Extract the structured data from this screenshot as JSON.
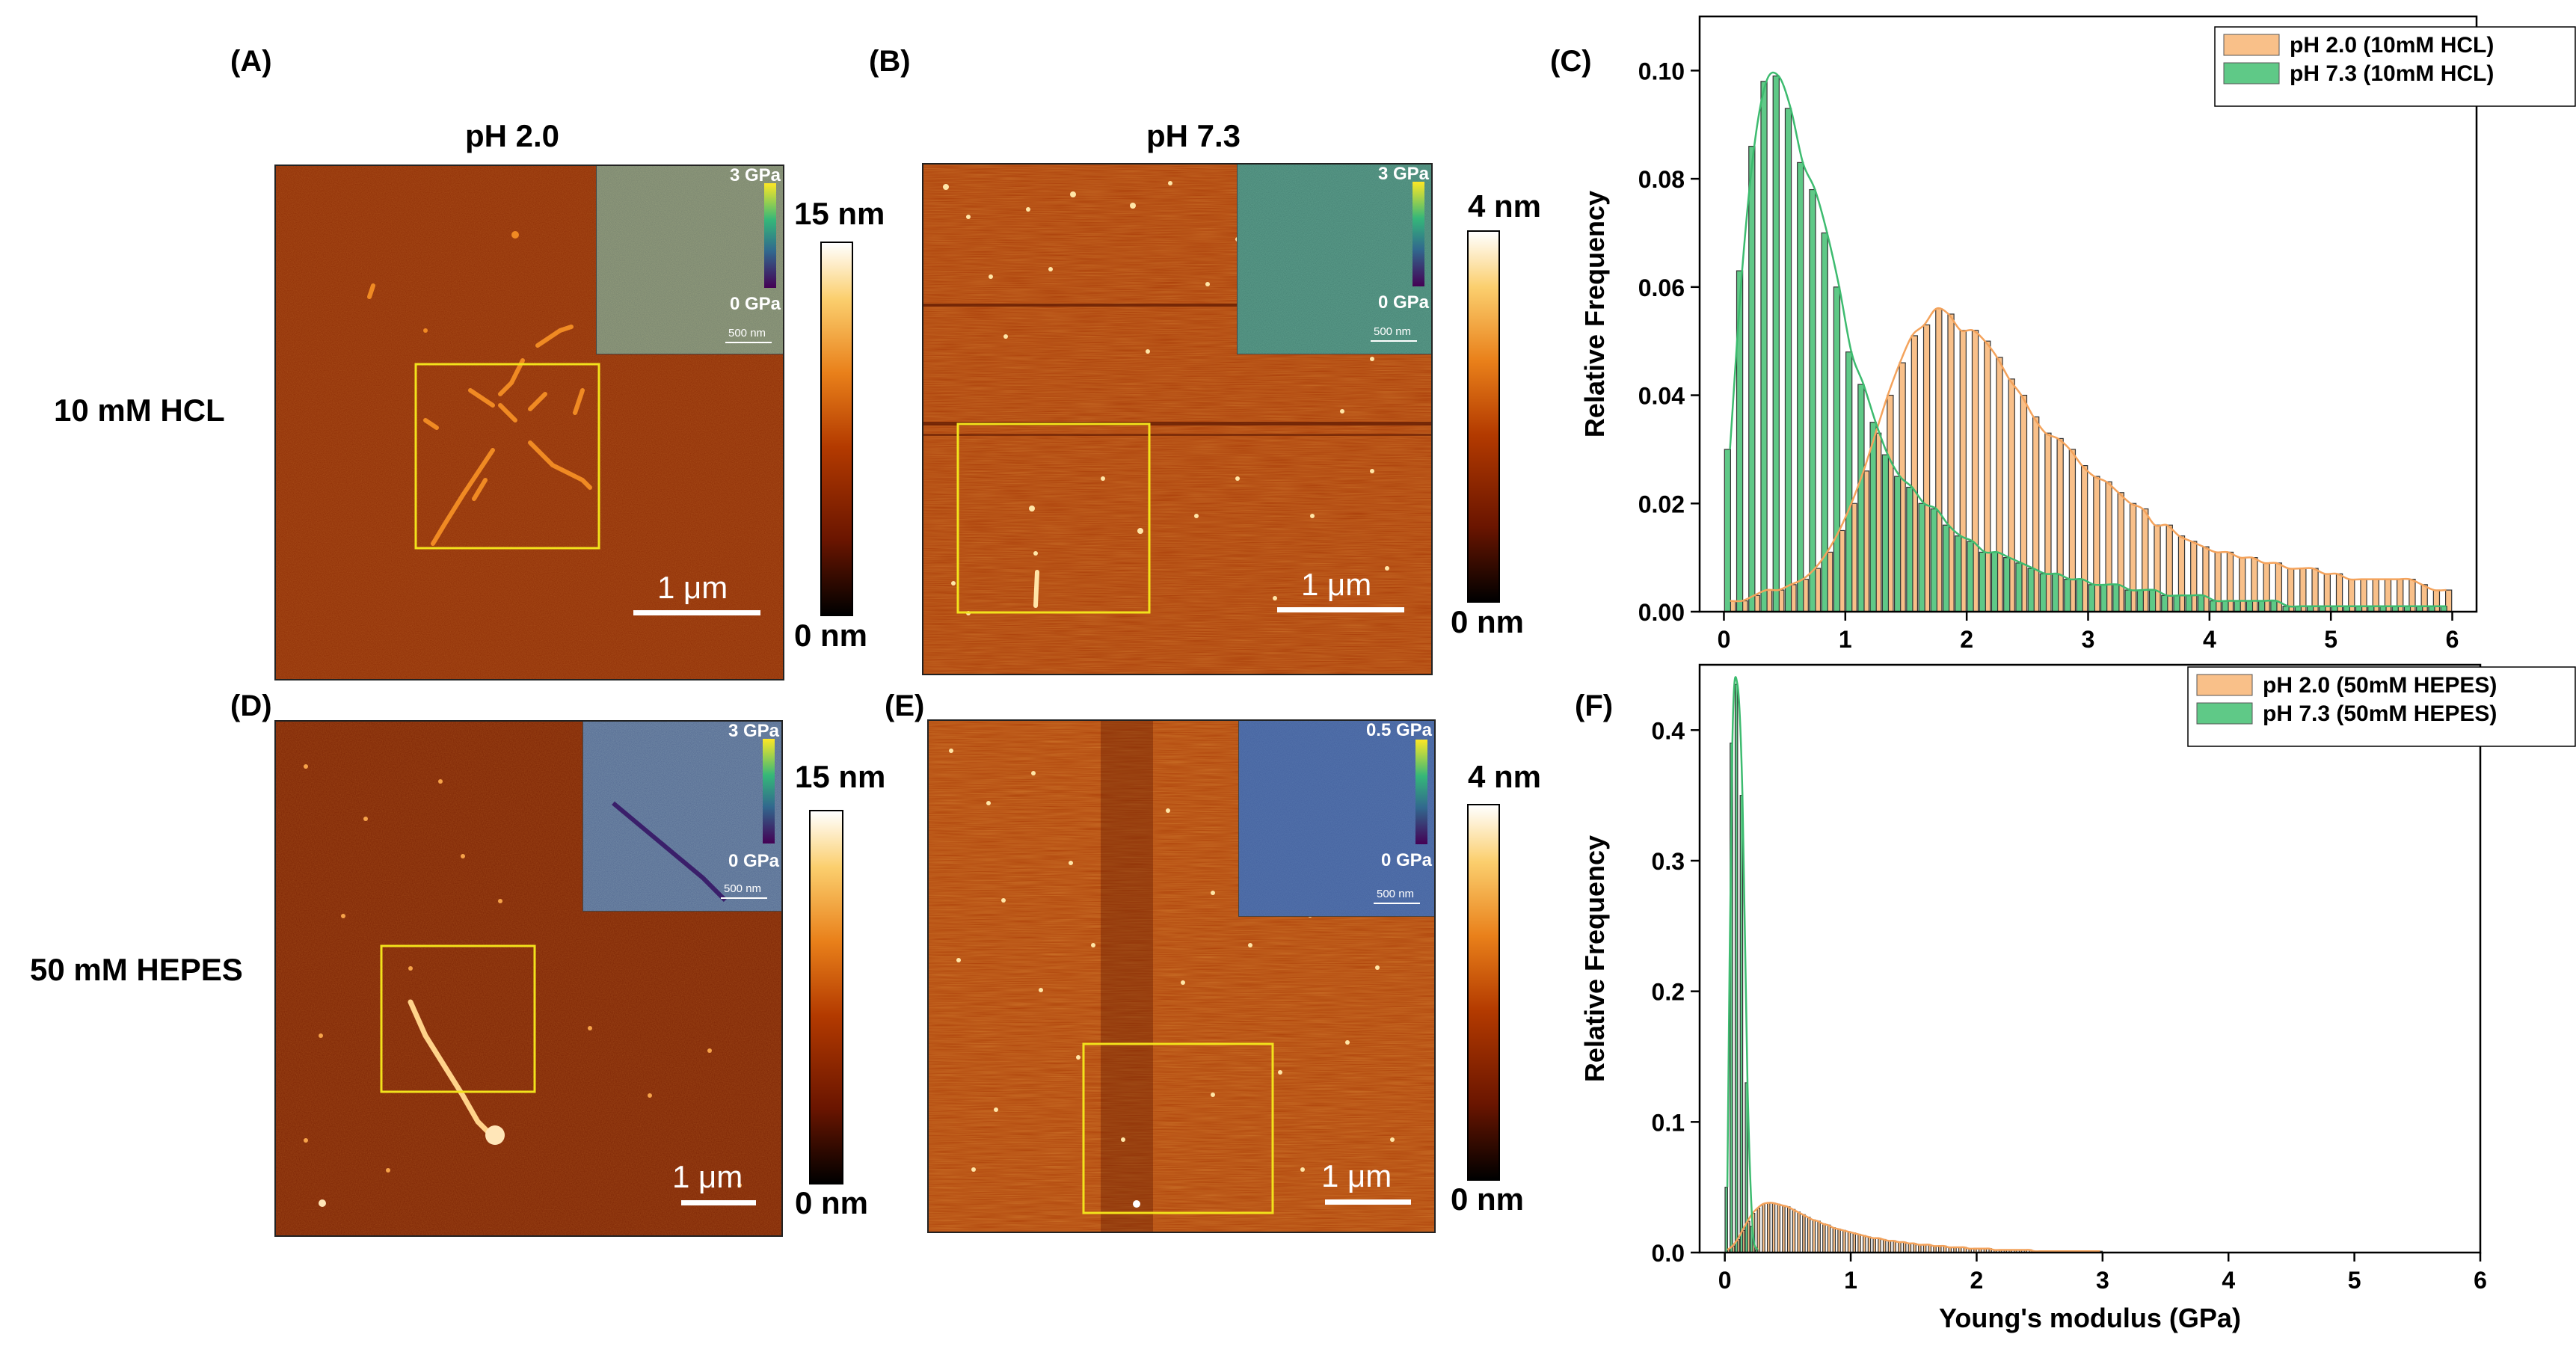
{
  "panels": {
    "A": {
      "label": "(A)"
    },
    "B": {
      "label": "(B)"
    },
    "C": {
      "label": "(C)"
    },
    "D": {
      "label": "(D)"
    },
    "E": {
      "label": "(E)"
    },
    "F": {
      "label": "(F)"
    }
  },
  "column_titles": {
    "left": "pH 2.0",
    "right": "pH 7.3"
  },
  "row_labels": {
    "top": "10 mM HCL",
    "bottom": "50 mM HEPES"
  },
  "afm_images": {
    "A": {
      "colorbar_max": "15 nm",
      "colorbar_min": "0 nm",
      "scalebar": "1 μm",
      "inset_max": "3 GPa",
      "inset_min": "0 GPa",
      "inset_scale": "500 nm"
    },
    "B": {
      "colorbar_max": "4 nm",
      "colorbar_min": "0 nm",
      "scalebar": "1 μm",
      "inset_max": "3 GPa",
      "inset_min": "0 GPa",
      "inset_scale": "500 nm"
    },
    "D": {
      "colorbar_max": "15 nm",
      "colorbar_min": "0 nm",
      "scalebar": "1 μm",
      "inset_max": "3 GPa",
      "inset_min": "0 GPa",
      "inset_scale": "500 nm"
    },
    "E": {
      "colorbar_max": "4 nm",
      "colorbar_min": "0 nm",
      "scalebar": "1 μm",
      "inset_max": "0.5 GPa",
      "inset_min": "0 GPa",
      "inset_scale": "500 nm"
    }
  },
  "colors": {
    "series_pH2": "#f9c089",
    "series_pH7": "#5fc987",
    "pH2_line": "#f4a35c",
    "pH7_line": "#3dbb6f",
    "box": "#f2e21c"
  },
  "chart_data": [
    {
      "id": "C",
      "type": "bar",
      "title": "",
      "xlabel": "",
      "ylabel": "Relative Frequency",
      "xlim": [
        -0.2,
        6.2
      ],
      "ylim": [
        0,
        0.11
      ],
      "xticks": [
        0,
        1,
        2,
        3,
        4,
        5,
        6
      ],
      "yticks": [
        0.0,
        0.02,
        0.04,
        0.06,
        0.08,
        0.1
      ],
      "ytick_labels": [
        "0.00",
        "0.02",
        "0.04",
        "0.06",
        "0.08",
        "0.10"
      ],
      "legend": "top-right",
      "bin_width": 0.1,
      "series": [
        {
          "name": "pH 2.0 (10mM HCL)",
          "color": "#f9c089",
          "x": [
            0.05,
            0.15,
            0.25,
            0.35,
            0.45,
            0.55,
            0.65,
            0.75,
            0.85,
            0.95,
            1.05,
            1.15,
            1.25,
            1.35,
            1.45,
            1.55,
            1.65,
            1.75,
            1.85,
            1.95,
            2.05,
            2.15,
            2.25,
            2.35,
            2.45,
            2.55,
            2.65,
            2.75,
            2.85,
            2.95,
            3.05,
            3.15,
            3.25,
            3.35,
            3.45,
            3.55,
            3.65,
            3.75,
            3.85,
            3.95,
            4.05,
            4.15,
            4.25,
            4.35,
            4.45,
            4.55,
            4.65,
            4.75,
            4.85,
            4.95,
            5.05,
            5.15,
            5.25,
            5.35,
            5.45,
            5.55,
            5.65,
            5.75,
            5.85,
            5.95
          ],
          "values": [
            0.002,
            0.002,
            0.003,
            0.004,
            0.004,
            0.005,
            0.006,
            0.008,
            0.011,
            0.015,
            0.02,
            0.026,
            0.033,
            0.04,
            0.046,
            0.051,
            0.053,
            0.056,
            0.055,
            0.052,
            0.052,
            0.05,
            0.047,
            0.043,
            0.04,
            0.036,
            0.033,
            0.032,
            0.03,
            0.027,
            0.025,
            0.024,
            0.022,
            0.02,
            0.019,
            0.016,
            0.016,
            0.014,
            0.013,
            0.012,
            0.011,
            0.011,
            0.01,
            0.01,
            0.009,
            0.009,
            0.008,
            0.008,
            0.008,
            0.007,
            0.007,
            0.006,
            0.006,
            0.006,
            0.006,
            0.006,
            0.006,
            0.005,
            0.004,
            0.004
          ]
        },
        {
          "name": "pH 7.3 (10mM HCL)",
          "color": "#5fc987",
          "x": [
            0.05,
            0.15,
            0.25,
            0.35,
            0.45,
            0.55,
            0.65,
            0.75,
            0.85,
            0.95,
            1.05,
            1.15,
            1.25,
            1.35,
            1.45,
            1.55,
            1.65,
            1.75,
            1.85,
            1.95,
            2.05,
            2.15,
            2.25,
            2.35,
            2.45,
            2.55,
            2.65,
            2.75,
            2.85,
            2.95,
            3.05,
            3.15,
            3.25,
            3.35,
            3.45,
            3.55,
            3.65,
            3.75,
            3.85,
            3.95,
            4.05,
            4.15,
            4.25,
            4.35,
            4.45,
            4.55,
            4.65,
            4.75,
            4.85,
            4.95,
            5.05,
            5.15,
            5.25,
            5.35,
            5.45,
            5.55,
            5.65,
            5.75,
            5.85,
            5.95
          ],
          "values": [
            0.03,
            0.063,
            0.086,
            0.098,
            0.099,
            0.093,
            0.083,
            0.078,
            0.07,
            0.06,
            0.048,
            0.042,
            0.035,
            0.029,
            0.025,
            0.023,
            0.02,
            0.019,
            0.016,
            0.014,
            0.013,
            0.011,
            0.011,
            0.01,
            0.009,
            0.008,
            0.007,
            0.007,
            0.006,
            0.006,
            0.005,
            0.005,
            0.005,
            0.004,
            0.004,
            0.004,
            0.003,
            0.003,
            0.003,
            0.003,
            0.002,
            0.002,
            0.002,
            0.002,
            0.002,
            0.002,
            0.001,
            0.001,
            0.001,
            0.001,
            0.001,
            0.001,
            0.001,
            0.001,
            0.001,
            0.001,
            0.001,
            0.001,
            0.001,
            0.001
          ]
        }
      ]
    },
    {
      "id": "F",
      "type": "bar",
      "title": "",
      "xlabel": "Young's modulus (GPa)",
      "ylabel": "Relative Frequency",
      "xlim": [
        -0.2,
        6.0
      ],
      "ylim": [
        0,
        0.45
      ],
      "xticks": [
        0,
        1,
        2,
        3,
        4,
        5,
        6
      ],
      "yticks": [
        0.0,
        0.1,
        0.2,
        0.3,
        0.4
      ],
      "ytick_labels": [
        "0.0",
        "0.1",
        "0.2",
        "0.3",
        "0.4"
      ],
      "legend": "top-right",
      "bin_width": 0.04,
      "series": [
        {
          "name": "pH 2.0 (50mM HEPES)",
          "color": "#f9c089",
          "x": [
            0.02,
            0.06,
            0.1,
            0.14,
            0.18,
            0.22,
            0.26,
            0.3,
            0.34,
            0.38,
            0.42,
            0.46,
            0.5,
            0.54,
            0.58,
            0.62,
            0.66,
            0.7,
            0.74,
            0.78,
            0.82,
            0.86,
            0.9,
            0.94,
            0.98,
            1.02,
            1.06,
            1.1,
            1.14,
            1.18,
            1.22,
            1.26,
            1.3,
            1.34,
            1.38,
            1.42,
            1.46,
            1.5,
            1.54,
            1.58,
            1.62,
            1.66,
            1.7,
            1.74,
            1.78,
            1.82,
            1.86,
            1.9,
            1.94,
            1.98,
            2.02,
            2.06,
            2.1,
            2.14,
            2.18,
            2.22,
            2.26,
            2.3,
            2.34,
            2.38,
            2.42,
            2.46,
            2.5,
            2.54,
            2.58,
            2.62,
            2.66,
            2.7,
            2.74,
            2.78,
            2.82,
            2.86,
            2.9,
            2.94,
            2.98
          ],
          "values": [
            0.002,
            0.005,
            0.01,
            0.017,
            0.024,
            0.03,
            0.034,
            0.037,
            0.038,
            0.038,
            0.037,
            0.036,
            0.035,
            0.033,
            0.031,
            0.029,
            0.027,
            0.025,
            0.024,
            0.022,
            0.021,
            0.019,
            0.018,
            0.017,
            0.016,
            0.015,
            0.014,
            0.013,
            0.012,
            0.011,
            0.011,
            0.01,
            0.009,
            0.009,
            0.008,
            0.008,
            0.007,
            0.007,
            0.006,
            0.006,
            0.006,
            0.005,
            0.005,
            0.005,
            0.004,
            0.004,
            0.004,
            0.004,
            0.003,
            0.003,
            0.003,
            0.003,
            0.003,
            0.002,
            0.002,
            0.002,
            0.002,
            0.002,
            0.002,
            0.002,
            0.002,
            0.001,
            0.001,
            0.001,
            0.001,
            0.001,
            0.001,
            0.001,
            0.001,
            0.001,
            0.001,
            0.001,
            0.001,
            0.001,
            0.001
          ]
        },
        {
          "name": "pH 7.3 (50mM HEPES)",
          "color": "#5fc987",
          "x": [
            0.02,
            0.06,
            0.1,
            0.14,
            0.18,
            0.22,
            0.26
          ],
          "values": [
            0.05,
            0.39,
            0.435,
            0.35,
            0.13,
            0.02,
            0.002
          ]
        }
      ]
    }
  ]
}
